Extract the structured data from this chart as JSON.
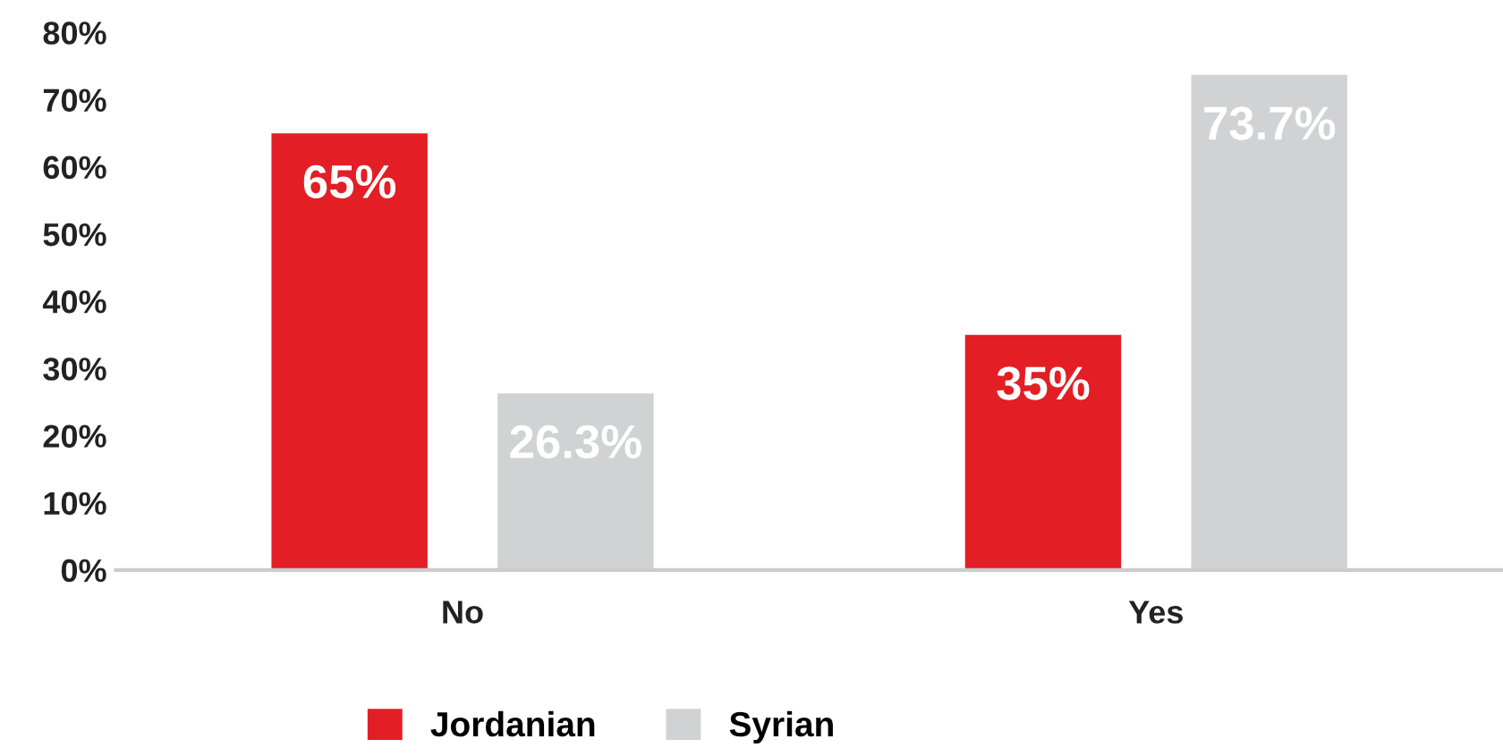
{
  "chart_data": {
    "type": "bar",
    "categories": [
      "No",
      "Yes"
    ],
    "series": [
      {
        "name": "Jordanian",
        "color": "#e31e24",
        "values": [
          65,
          35
        ],
        "value_labels": [
          "65%",
          "35%"
        ]
      },
      {
        "name": "Syrian",
        "color": "#d1d2d4",
        "values": [
          26.3,
          73.7
        ],
        "value_labels": [
          "26.3%",
          "73.7%"
        ]
      }
    ],
    "ylim": [
      0,
      80
    ],
    "yticks": [
      {
        "value": 0,
        "label": "0%"
      },
      {
        "value": 10,
        "label": "10%"
      },
      {
        "value": 20,
        "label": "20%"
      },
      {
        "value": 30,
        "label": "30%"
      },
      {
        "value": 40,
        "label": "40%"
      },
      {
        "value": 50,
        "label": "50%"
      },
      {
        "value": 60,
        "label": "60%"
      },
      {
        "value": 70,
        "label": "70%"
      },
      {
        "value": 80,
        "label": "80%"
      }
    ],
    "grid": false,
    "legend": "bottom"
  }
}
